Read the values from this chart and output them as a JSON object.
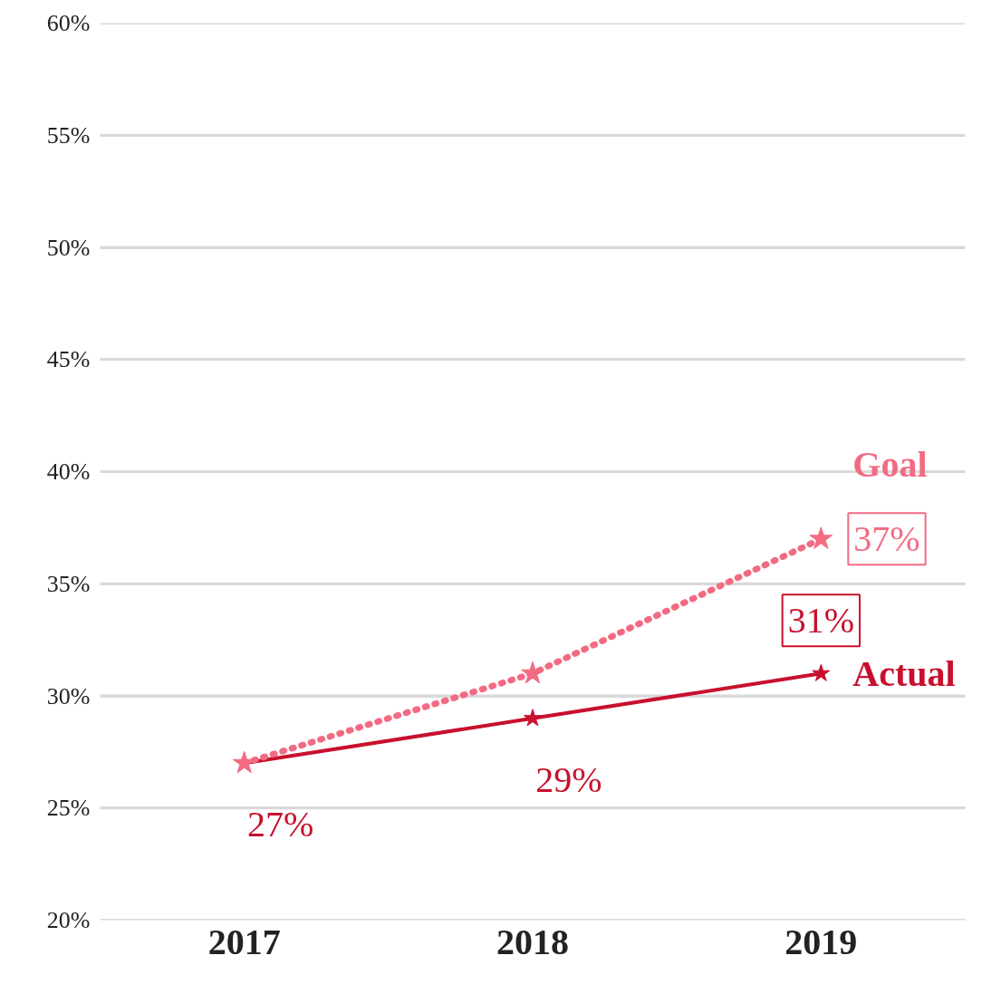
{
  "chart_data": {
    "type": "line",
    "categories": [
      "2017",
      "2018",
      "2019"
    ],
    "series": [
      {
        "name": "Goal",
        "color": "#f26b82",
        "values": [
          27,
          31,
          37
        ],
        "line_style": "dotted",
        "value_labels": [
          null,
          null,
          "37%"
        ]
      },
      {
        "name": "Actual",
        "color": "#c8102e",
        "values": [
          27,
          29,
          31
        ],
        "line_style": "solid",
        "value_labels": [
          "27%",
          "29%",
          "31%"
        ]
      }
    ],
    "ylim": [
      20,
      60
    ],
    "yticks": [
      {
        "value": 20,
        "label": "20%"
      },
      {
        "value": 25,
        "label": "25%"
      },
      {
        "value": 30,
        "label": "30%"
      },
      {
        "value": 35,
        "label": "35%"
      },
      {
        "value": 40,
        "label": "40%"
      },
      {
        "value": 45,
        "label": "45%"
      },
      {
        "value": 50,
        "label": "50%"
      },
      {
        "value": 55,
        "label": "55%"
      },
      {
        "value": 60,
        "label": "60%"
      }
    ],
    "grid": "y",
    "legend": "right",
    "marker": "star"
  }
}
